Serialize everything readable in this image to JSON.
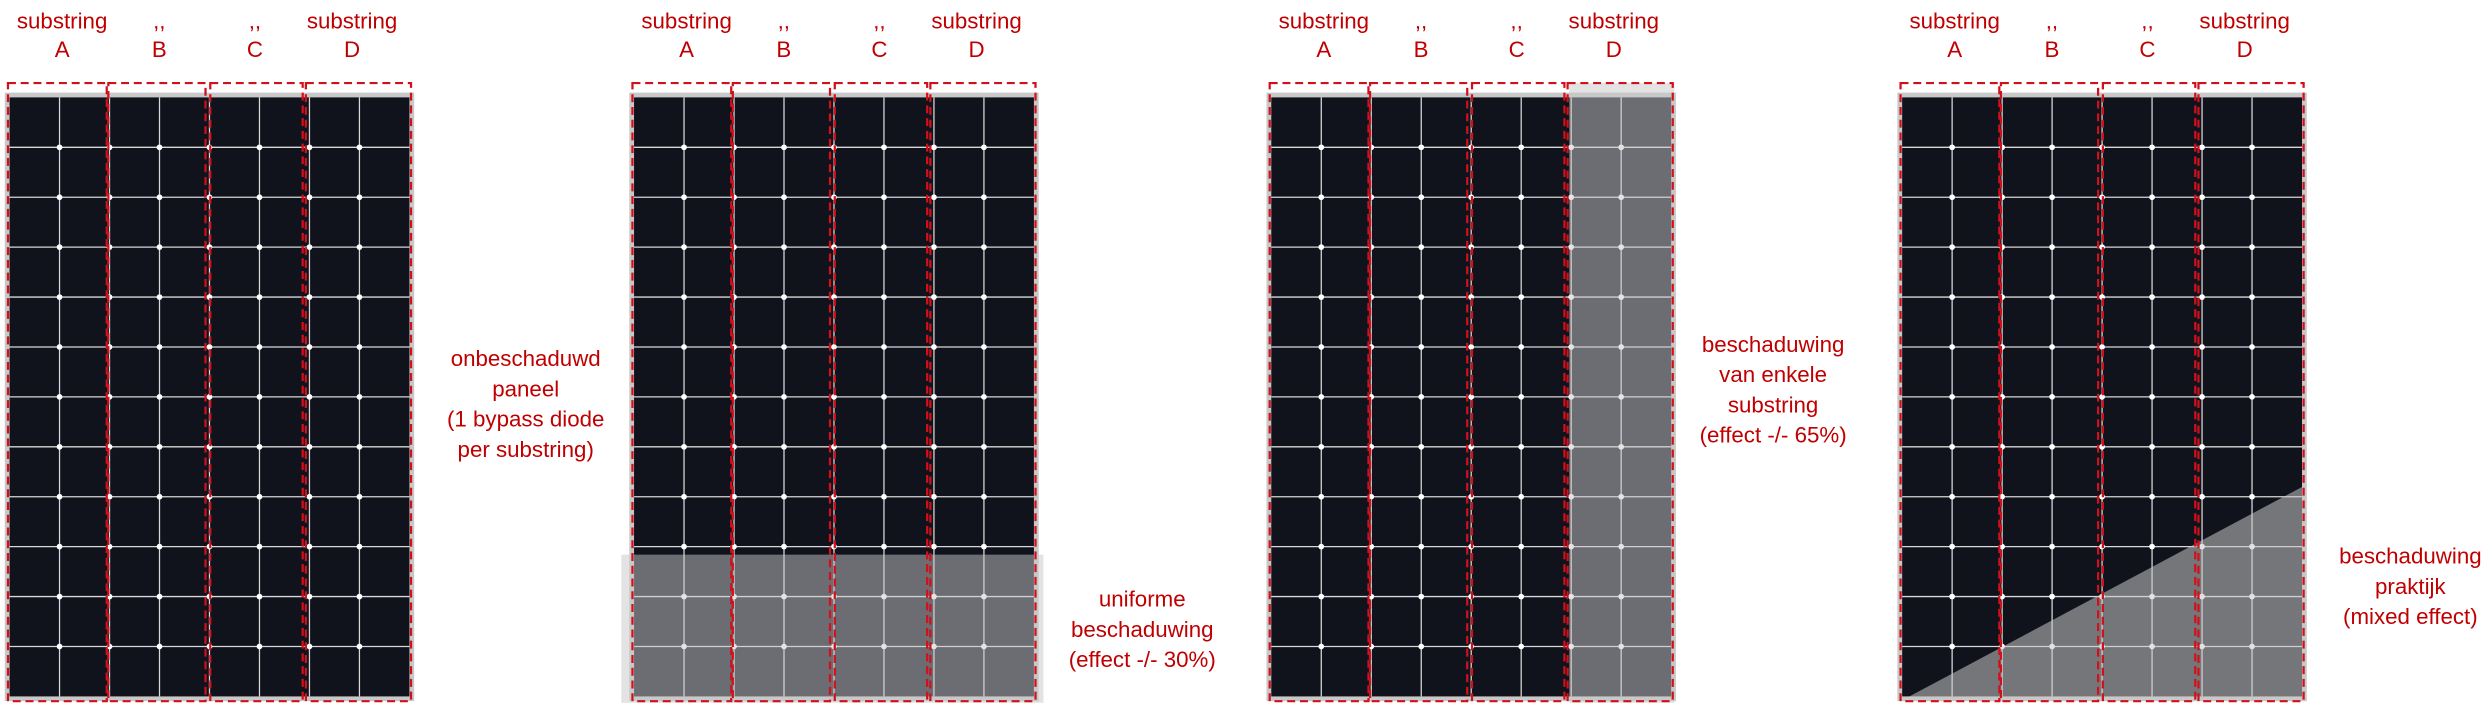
{
  "panels": [
    {
      "labels": [
        [
          "substring",
          "A"
        ],
        [
          ",,",
          "B"
        ],
        [
          ",,",
          "C"
        ],
        [
          "substring",
          "D"
        ]
      ],
      "caption": [
        "onbeschaduwd",
        "paneel",
        "(1 bypass diode",
        "per substring)"
      ]
    },
    {
      "labels": [
        [
          "substring",
          "A"
        ],
        [
          ",,",
          "B"
        ],
        [
          ",,",
          "C"
        ],
        [
          "substring",
          "D"
        ]
      ],
      "caption": [
        "uniforme",
        "beschaduwing",
        "(effect -/- 30%)"
      ]
    },
    {
      "labels": [
        [
          "substring",
          "A"
        ],
        [
          ",,",
          "B"
        ],
        [
          ",,",
          "C"
        ],
        [
          "substring",
          "D"
        ]
      ],
      "caption": [
        "beschaduwing",
        "van enkele",
        "substring",
        "(effect -/- 65%)"
      ]
    },
    {
      "labels": [
        [
          "substring",
          "A"
        ],
        [
          ",,",
          "B"
        ],
        [
          ",,",
          "C"
        ],
        [
          "substring",
          "D"
        ]
      ],
      "caption": [
        "beschaduwing",
        "praktijk",
        "(mixed effect)"
      ]
    }
  ]
}
